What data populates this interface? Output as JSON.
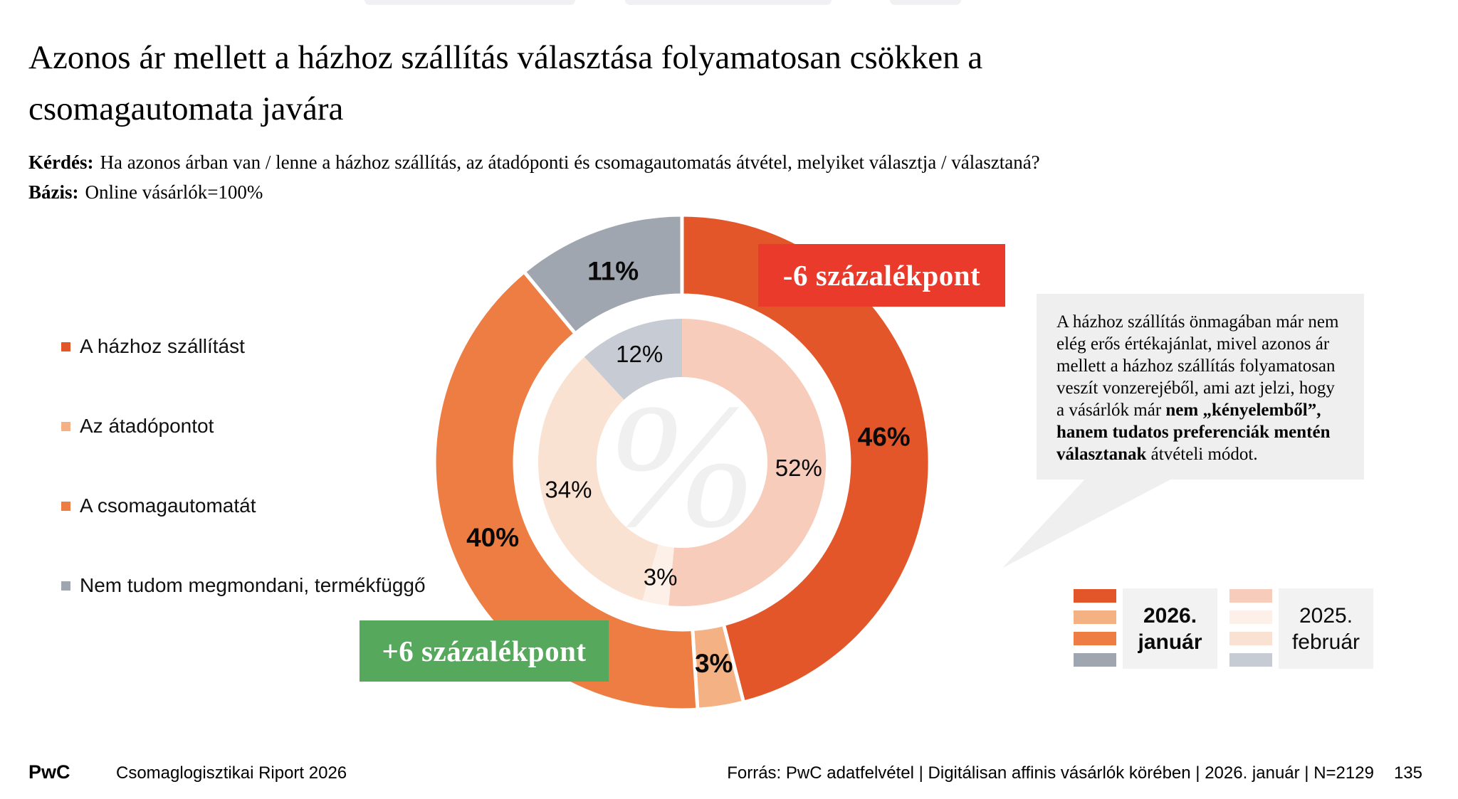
{
  "title": {
    "line1": "Azonos ár mellett a házhoz szállítás választása folyamatosan csökken a",
    "line2": "csomagautomata javára"
  },
  "question": {
    "label": "Kérdés:",
    "text": "Ha azonos árban van / lenne a házhoz szállítás, az átadóponti és csomagautomatás átvétel, melyiket választja / választaná?"
  },
  "basis": {
    "label": "Bázis:",
    "text": "Online vásárlók=100%"
  },
  "category_legend": {
    "items": [
      {
        "label": "A házhoz szállítást",
        "color": "#E25629"
      },
      {
        "label": "Az átadópontot",
        "color": "#F4B183"
      },
      {
        "label": "A csomagautomatát",
        "color": "#ED7D43"
      },
      {
        "label": "Nem tudom megmondani, termékfüggő",
        "color": "#A0A6AF"
      }
    ]
  },
  "chart_data": {
    "type": "pie",
    "subtype": "double-donut",
    "categories": [
      "A házhoz szállítást",
      "Az átadópontot",
      "A csomagautomatát",
      "Nem tudom megmondani, termékfüggő"
    ],
    "series": [
      {
        "name": "2026. január",
        "ring": "outer",
        "values": [
          46,
          3,
          40,
          11
        ],
        "colors": [
          "#E25629",
          "#F4B183",
          "#ED7D43",
          "#A0A6AF"
        ]
      },
      {
        "name": "2025. február",
        "ring": "inner",
        "values": [
          52,
          3,
          34,
          12
        ],
        "colors": [
          "#F7CCBB",
          "#FCF0E8",
          "#FAE2D3",
          "#C7CBD3"
        ]
      }
    ],
    "start_angle": "12-oclock",
    "direction": "clockwise",
    "unit": "%",
    "center_watermark": "%"
  },
  "badges": {
    "decrease": {
      "text": "-6 százalékpont",
      "color": "#E93A2B"
    },
    "increase": {
      "text": "+6 százalékpont",
      "color": "#56A85C"
    }
  },
  "callout": {
    "background": "#EFEFEF",
    "segments": [
      {
        "text": "A házhoz szállítás önmagában már nem elég erős értékajánlat, mivel azonos ár mellett a házhoz szállítás folyamatosan veszít vonzerejéből, ami azt jelzi, hogy a vásárlók már ",
        "bold": false
      },
      {
        "text": "nem „kényelemből”, hanem tudatos preferenciák mentén választanak",
        "bold": true
      },
      {
        "text": " átvételi módot.",
        "bold": false
      }
    ]
  },
  "period_legend": {
    "groups": [
      {
        "line1": "2026.",
        "line2": "január",
        "emphasis": true,
        "colors": [
          "#E25629",
          "#F4B183",
          "#ED7D43",
          "#A0A6AF"
        ]
      },
      {
        "line1": "2025.",
        "line2": "február",
        "emphasis": false,
        "colors": [
          "#F7CCBB",
          "#FCF0E8",
          "#FAE2D3",
          "#C7CBD3"
        ]
      }
    ]
  },
  "footer": {
    "brand": "PwC",
    "report_title": "Csomaglogisztikai Riport 2026",
    "source": "Forrás: PwC adatfelvétel | Digitálisan affinis vásárlók körében | 2026. január |  N=2129",
    "page_number": "135"
  }
}
